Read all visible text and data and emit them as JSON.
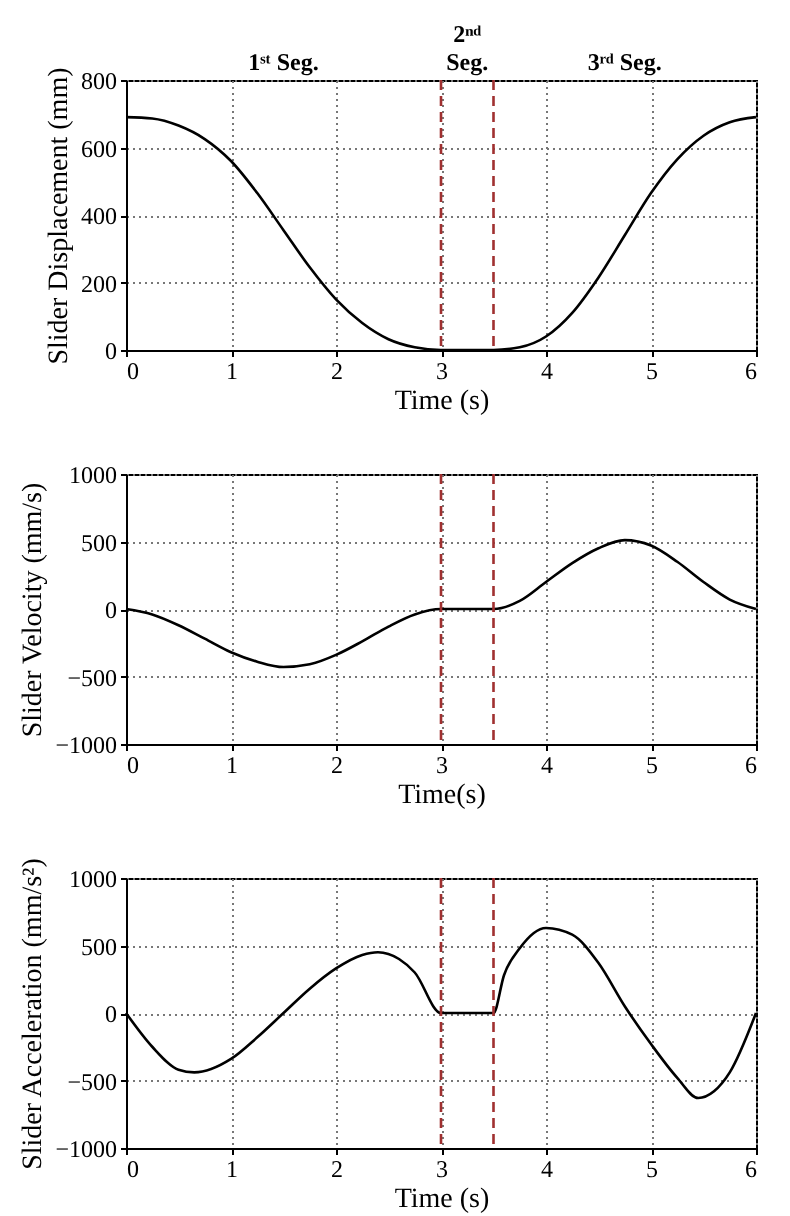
{
  "chart_data": [
    {
      "type": "line",
      "xlabel": "Time (s)",
      "ylabel": "Slider Displacement (mm)",
      "x": [
        0,
        0.25,
        0.5,
        0.75,
        1,
        1.25,
        1.5,
        1.75,
        2,
        2.25,
        2.5,
        2.75,
        3,
        3.5,
        3.75,
        4,
        4.25,
        4.5,
        4.75,
        5,
        5.25,
        5.5,
        5.75,
        6
      ],
      "series": [
        {
          "color": "#000000",
          "values": [
            690,
            686,
            665,
            625,
            560,
            465,
            355,
            245,
            150,
            80,
            32,
            8,
            0,
            0,
            8,
            40,
            110,
            215,
            340,
            465,
            565,
            635,
            675,
            690
          ]
        }
      ],
      "xlim": [
        0,
        6
      ],
      "xticks": [
        0,
        1,
        2,
        3,
        4,
        5,
        6
      ],
      "ylim": [
        0,
        800
      ],
      "yticks": [
        0,
        200,
        400,
        600,
        800
      ],
      "grid": true,
      "ref_lines": [
        {
          "axis": "x",
          "value": 3,
          "color": "#a03030",
          "line_style": "dashed"
        },
        {
          "axis": "x",
          "value": 3.5,
          "color": "#a03030",
          "line_style": "dashed"
        }
      ],
      "annotations": [
        "1ˢᵗ Seg.",
        "2ⁿᵈ\nSeg.",
        "3ʳᵈ Seg."
      ]
    },
    {
      "type": "line",
      "xlabel": "Time(s)",
      "ylabel": "Slider Velocity (mm/s)",
      "x": [
        0,
        0.25,
        0.5,
        0.75,
        1,
        1.25,
        1.5,
        1.75,
        2,
        2.25,
        2.5,
        2.75,
        3,
        3.5,
        3.75,
        4,
        4.25,
        4.5,
        4.75,
        5,
        5.25,
        5.5,
        5.75,
        6
      ],
      "series": [
        {
          "color": "#000000",
          "values": [
            0,
            -40,
            -120,
            -220,
            -320,
            -390,
            -430,
            -410,
            -340,
            -240,
            -130,
            -40,
            0,
            0,
            60,
            200,
            340,
            450,
            510,
            470,
            350,
            200,
            70,
            0
          ]
        }
      ],
      "xlim": [
        0,
        6
      ],
      "xticks": [
        0,
        1,
        2,
        3,
        4,
        5,
        6
      ],
      "ylim": [
        -1000,
        1000
      ],
      "yticks": [
        -1000,
        -500,
        0,
        500,
        1000
      ],
      "grid": true,
      "ref_lines": [
        {
          "axis": "x",
          "value": 3,
          "color": "#a03030",
          "line_style": "dashed"
        },
        {
          "axis": "x",
          "value": 3.5,
          "color": "#a03030",
          "line_style": "dashed"
        }
      ]
    },
    {
      "type": "line",
      "xlabel": "Time (s)",
      "ylabel": "Slider Acceleration (mm/s²)",
      "x": [
        0,
        0.25,
        0.5,
        0.65,
        1,
        1.25,
        1.5,
        1.75,
        2,
        2.25,
        2.4,
        2.6,
        2.75,
        3,
        3.5,
        3.6,
        3.75,
        4,
        4.25,
        4.5,
        4.75,
        5,
        5.25,
        5.45,
        5.6,
        5.75,
        6
      ],
      "series": [
        {
          "color": "#000000",
          "values": [
            0,
            -250,
            -420,
            -440,
            -340,
            -180,
            0,
            180,
            330,
            430,
            450,
            400,
            300,
            0,
            0,
            280,
            480,
            630,
            580,
            370,
            50,
            -230,
            -480,
            -630,
            -580,
            -440,
            0
          ]
        }
      ],
      "xlim": [
        0,
        6
      ],
      "xticks": [
        0,
        1,
        2,
        3,
        4,
        5,
        6
      ],
      "ylim": [
        -1000,
        1000
      ],
      "yticks": [
        -1000,
        -500,
        0,
        500,
        1000
      ],
      "grid": true,
      "ref_lines": [
        {
          "axis": "x",
          "value": 3,
          "color": "#a03030",
          "line_style": "dashed"
        },
        {
          "axis": "x",
          "value": 3.5,
          "color": "#a03030",
          "line_style": "dashed"
        }
      ]
    }
  ]
}
